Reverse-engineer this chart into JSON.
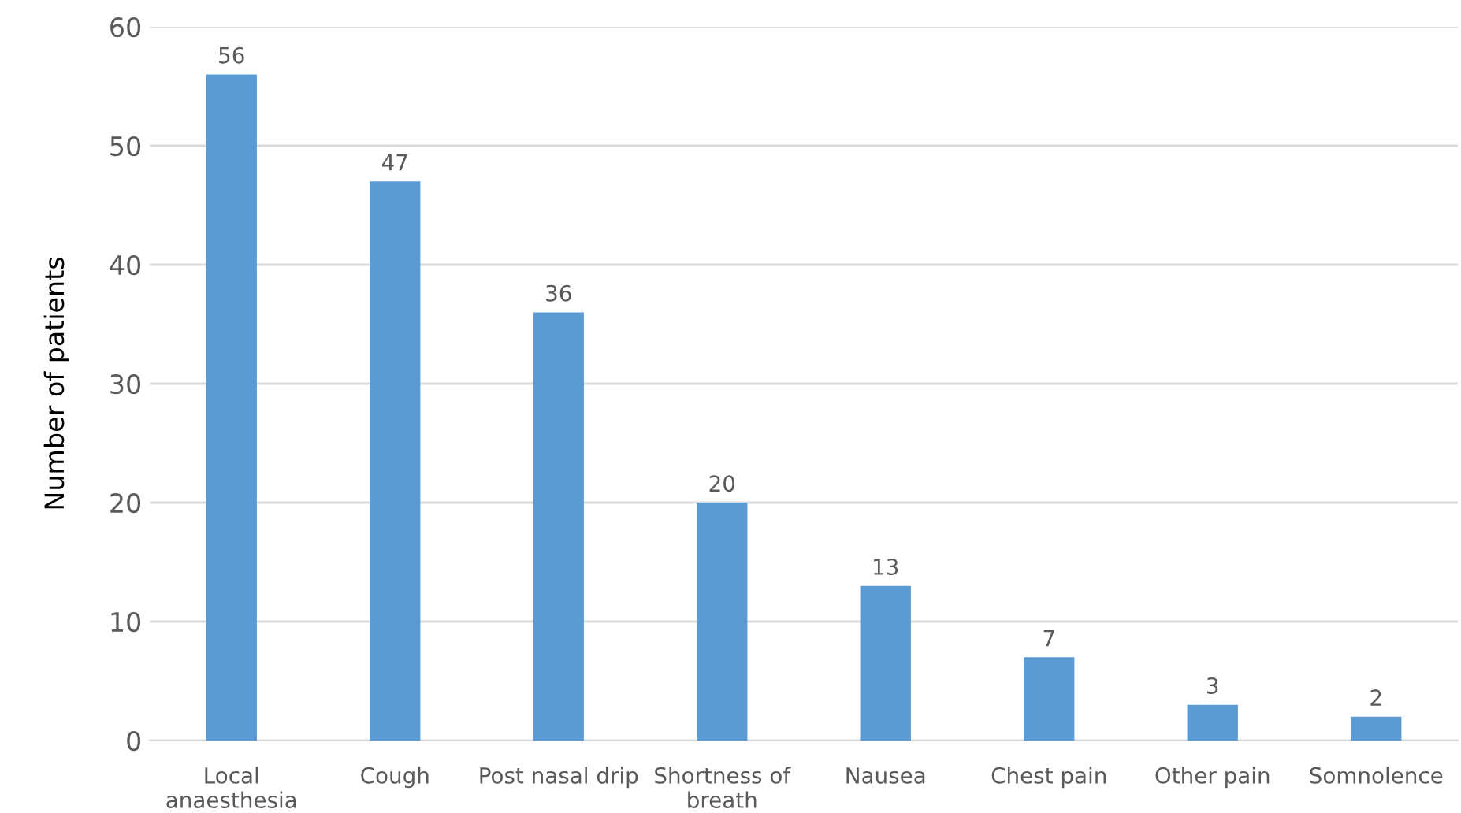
{
  "chart_data": {
    "type": "bar",
    "ylabel": "Number of patients",
    "categories": [
      "Local\nanaesthesia",
      "Cough",
      "Post nasal drip",
      "Shortness of\nbreath",
      "Nausea",
      "Chest pain",
      "Other pain",
      "Somnolence"
    ],
    "values": [
      56,
      47,
      36,
      20,
      13,
      7,
      3,
      2
    ],
    "color": "#5b9bd5",
    "ylim": [
      0,
      60
    ],
    "yticks": [
      0,
      10,
      20,
      30,
      40,
      50,
      60
    ],
    "grid": "y",
    "data_labels": true
  }
}
